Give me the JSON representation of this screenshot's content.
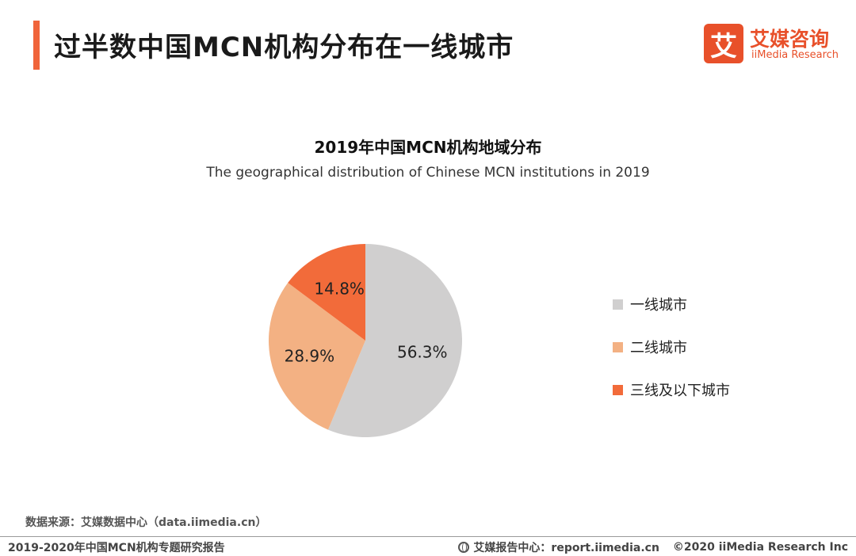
{
  "header": {
    "title": "过半数中国MCN机构分布在一线城市"
  },
  "logo": {
    "mark": "艾",
    "name_cn": "艾媒咨询",
    "name_en": "iiMedia Research",
    "brand_color": "#E8502A"
  },
  "chart_data": {
    "type": "pie",
    "title": "2019年中国MCN机构地域分布",
    "subtitle": "The geographical distribution of Chinese MCN institutions in 2019",
    "categories": [
      "一线城市",
      "二线城市",
      "三线及以下城市"
    ],
    "values": [
      56.3,
      28.9,
      14.8
    ],
    "labels": [
      "56.3%",
      "28.9%",
      "14.8%"
    ],
    "colors": [
      "#D0CFCF",
      "#F3B183",
      "#F26B3A"
    ],
    "unit": "%",
    "legend_position": "right"
  },
  "footer": {
    "source": "数据来源：艾媒数据中心（data.iimedia.cn）",
    "report": "2019-2020年中国MCN机构专题研究报告",
    "site": "艾媒报告中心：report.iimedia.cn",
    "copyright": "©2020  iiMedia Research  Inc"
  }
}
